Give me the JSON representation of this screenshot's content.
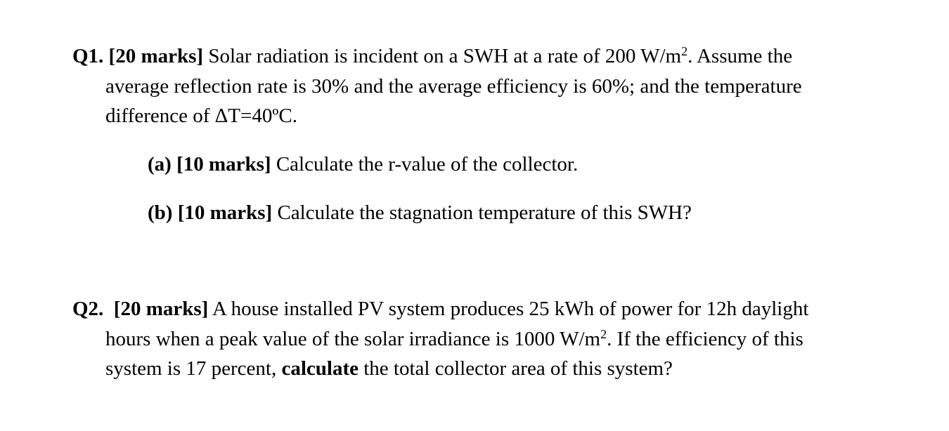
{
  "paragraphs": [
    {
      "lines": [
        [
          {
            "text": "Q1. [20 marks]",
            "bold": true
          },
          {
            "text": " Solar radiation is incident on a SWH at a rate of 200 W/m"
          },
          {
            "text": "2",
            "sup": true
          },
          {
            "text": ". Assume the"
          }
        ],
        [
          {
            "text": "average reflection rate is 30% and the average efficiency is 60%; and the temperature"
          }
        ],
        [
          {
            "text": "difference of ΔT=40ºC."
          }
        ]
      ]
    },
    {
      "lines": [
        [
          {
            "text": "(a) [10 marks]",
            "bold": true
          },
          {
            "text": " Calculate the r-value of the collector."
          }
        ]
      ]
    },
    {
      "lines": [
        [
          {
            "text": "(b) [10 marks]",
            "bold": true
          },
          {
            "text": " Calculate the stagnation temperature of this SWH?"
          }
        ]
      ]
    },
    {
      "lines": [
        [
          {
            "text": "Q2.  [20 marks]",
            "bold": true
          },
          {
            "text": " A house installed PV system produces 25 kWh of power for 12h daylight"
          }
        ],
        [
          {
            "text": "hours when a peak value of the solar irradiance is 1000 W/m"
          },
          {
            "text": "2",
            "sup": true
          },
          {
            "text": ". If the efficiency of this"
          }
        ],
        [
          {
            "text": "system is 17 percent, "
          },
          {
            "text": "calculate",
            "bold": true
          },
          {
            "text": " the total collector area of this system?"
          }
        ]
      ]
    }
  ]
}
